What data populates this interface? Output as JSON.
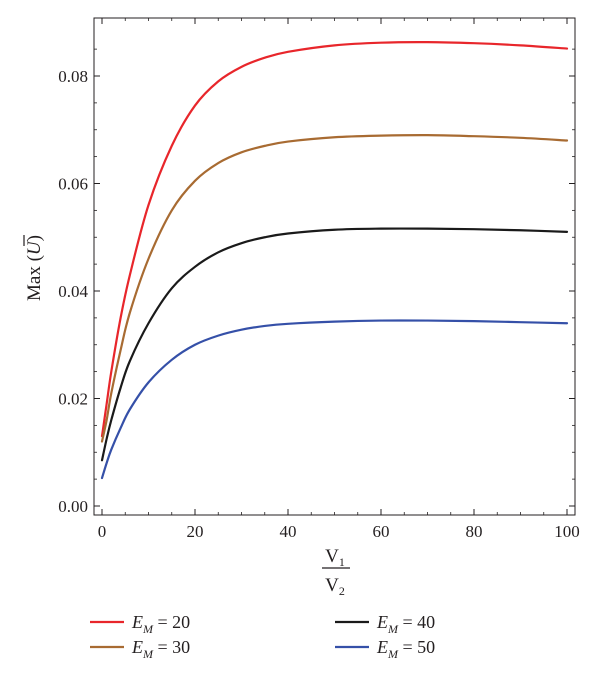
{
  "chart_data": {
    "type": "line",
    "xlabel": {
      "numerator": "V",
      "numerator_sub": "1",
      "denominator": "V",
      "denominator_sub": "2"
    },
    "ylabel": {
      "prefix": "Max (",
      "symbol": "U",
      "suffix": ")"
    },
    "xlim": [
      0,
      100
    ],
    "ylim": [
      0,
      0.09
    ],
    "x_ticks": [
      0,
      20,
      40,
      60,
      80,
      100
    ],
    "y_ticks": [
      0.0,
      0.02,
      0.04,
      0.06,
      0.08
    ],
    "x_tick_labels": [
      "0",
      "20",
      "40",
      "60",
      "80",
      "100"
    ],
    "y_tick_labels": [
      "0.00",
      "0.02",
      "0.04",
      "0.06",
      "0.08"
    ],
    "grid": false,
    "legend_placement": "bottom",
    "series": [
      {
        "name": "20",
        "label_symbol": "E",
        "label_sub": "M",
        "color": "#e8262b",
        "x": [
          0,
          1,
          2,
          4,
          6,
          10,
          15,
          20,
          25,
          30,
          35,
          40,
          50,
          60,
          70,
          80,
          90,
          100
        ],
        "y": [
          0.013,
          0.019,
          0.025,
          0.035,
          0.043,
          0.056,
          0.067,
          0.0745,
          0.079,
          0.0817,
          0.0834,
          0.0845,
          0.0857,
          0.0862,
          0.0863,
          0.0861,
          0.0857,
          0.0851
        ]
      },
      {
        "name": "30",
        "label_symbol": "E",
        "label_sub": "M",
        "color": "#a86b32",
        "x": [
          0,
          1,
          2,
          4,
          6,
          10,
          15,
          20,
          25,
          30,
          35,
          40,
          50,
          60,
          70,
          80,
          90,
          100
        ],
        "y": [
          0.012,
          0.016,
          0.021,
          0.029,
          0.036,
          0.046,
          0.055,
          0.0605,
          0.0638,
          0.0658,
          0.067,
          0.0678,
          0.0686,
          0.0689,
          0.069,
          0.0688,
          0.0685,
          0.068
        ]
      },
      {
        "name": "40",
        "label_symbol": "E",
        "label_sub": "M",
        "color": "#1a1a1a",
        "x": [
          0,
          1,
          2,
          4,
          6,
          10,
          15,
          20,
          25,
          30,
          35,
          40,
          50,
          60,
          70,
          80,
          90,
          100
        ],
        "y": [
          0.0085,
          0.0125,
          0.016,
          0.022,
          0.027,
          0.034,
          0.0405,
          0.0445,
          0.0472,
          0.0489,
          0.05,
          0.0507,
          0.0514,
          0.0516,
          0.0516,
          0.0515,
          0.0513,
          0.051
        ]
      },
      {
        "name": "50",
        "label_symbol": "E",
        "label_sub": "M",
        "color": "#3550a8",
        "x": [
          0,
          1,
          2,
          4,
          6,
          10,
          15,
          20,
          25,
          30,
          35,
          40,
          50,
          60,
          70,
          80,
          90,
          100
        ],
        "y": [
          0.0052,
          0.008,
          0.0105,
          0.0145,
          0.018,
          0.023,
          0.0272,
          0.03,
          0.0317,
          0.0328,
          0.0335,
          0.0339,
          0.0343,
          0.0345,
          0.0345,
          0.0344,
          0.0342,
          0.034
        ]
      }
    ]
  }
}
